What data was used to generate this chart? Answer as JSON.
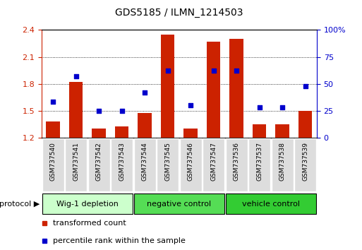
{
  "title": "GDS5185 / ILMN_1214503",
  "samples": [
    "GSM737540",
    "GSM737541",
    "GSM737542",
    "GSM737543",
    "GSM737544",
    "GSM737545",
    "GSM737546",
    "GSM737547",
    "GSM737536",
    "GSM737537",
    "GSM737538",
    "GSM737539"
  ],
  "transformed_counts": [
    1.38,
    1.82,
    1.3,
    1.32,
    1.47,
    2.35,
    1.3,
    2.27,
    2.3,
    1.35,
    1.35,
    1.5
  ],
  "percentile_ranks": [
    33,
    57,
    25,
    25,
    42,
    62,
    30,
    62,
    62,
    28,
    28,
    48
  ],
  "y_min": 1.2,
  "y_max": 2.4,
  "y_ticks": [
    1.2,
    1.5,
    1.8,
    2.1,
    2.4
  ],
  "y2_ticks": [
    0,
    25,
    50,
    75,
    100
  ],
  "bar_color": "#cc2200",
  "dot_color": "#0000cc",
  "groups": [
    {
      "label": "Wig-1 depletion",
      "start": 0,
      "end": 4,
      "color": "#ccffcc"
    },
    {
      "label": "negative control",
      "start": 4,
      "end": 8,
      "color": "#55dd55"
    },
    {
      "label": "vehicle control",
      "start": 8,
      "end": 12,
      "color": "#33cc33"
    }
  ],
  "protocol_label": "protocol",
  "legend_bar_label": "transformed count",
  "legend_dot_label": "percentile rank within the sample",
  "background_color": "#ffffff",
  "sample_box_color": "#dddddd",
  "grid_yticks": [
    1.5,
    1.8,
    2.1
  ]
}
